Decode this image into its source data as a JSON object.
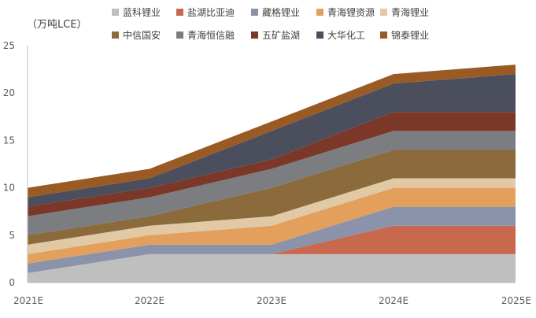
{
  "chart_data": {
    "type": "area",
    "unit_label": "（万吨LCE）",
    "x": [
      "2021E",
      "2022E",
      "2023E",
      "2024E",
      "2025E"
    ],
    "ylim": [
      0,
      25
    ],
    "yticks": [
      "0",
      "5",
      "10",
      "15",
      "20",
      "25"
    ],
    "grid": false,
    "legend_position": "top",
    "series": [
      {
        "name": "蓝科锂业",
        "color": "#bfbfbf",
        "values": [
          1,
          3,
          3,
          3,
          3
        ]
      },
      {
        "name": "盐湖比亚迪",
        "color": "#c8684c",
        "values": [
          0,
          0,
          0,
          3,
          3
        ]
      },
      {
        "name": "藏格锂业",
        "color": "#8a93aa",
        "values": [
          1,
          1,
          1,
          2,
          2
        ]
      },
      {
        "name": "青海锂资源",
        "color": "#e3a05c",
        "values": [
          1,
          1,
          2,
          2,
          2
        ]
      },
      {
        "name": "青海锂业",
        "color": "#e1c9a6",
        "values": [
          1,
          1,
          1,
          1,
          1
        ]
      },
      {
        "name": "中信国安",
        "color": "#8b6a3b",
        "values": [
          1,
          1,
          3,
          3,
          3
        ]
      },
      {
        "name": "青海恒信融",
        "color": "#7b7d80",
        "values": [
          2,
          2,
          2,
          2,
          2
        ]
      },
      {
        "name": "五矿盐湖",
        "color": "#7b3828",
        "values": [
          1,
          1,
          1,
          2,
          2
        ]
      },
      {
        "name": "大华化工",
        "color": "#4b4e5d",
        "values": [
          1,
          1,
          3,
          3,
          4
        ]
      },
      {
        "name": "锦泰锂业",
        "color": "#9a5a24",
        "values": [
          1,
          1,
          1,
          1,
          1
        ]
      }
    ]
  }
}
